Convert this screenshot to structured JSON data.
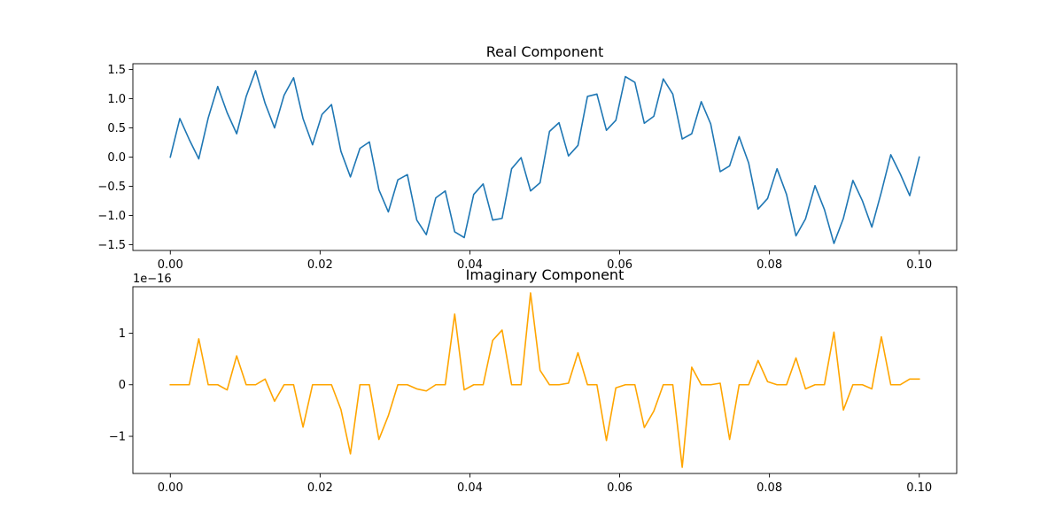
{
  "chart_data": [
    {
      "type": "line",
      "title": "Real Component",
      "xlabel": "",
      "ylabel": "",
      "xlim": [
        -0.005,
        0.105
      ],
      "ylim": [
        -1.6,
        1.6
      ],
      "xticks": [
        0.0,
        0.02,
        0.04,
        0.06,
        0.08,
        0.1
      ],
      "xtick_labels": [
        "0.00",
        "0.02",
        "0.04",
        "0.06",
        "0.08",
        "0.10"
      ],
      "yticks": [
        -1.5,
        -1.0,
        -0.5,
        0.0,
        0.5,
        1.0,
        1.5
      ],
      "ytick_labels": [
        "−1.5",
        "−1.0",
        "−0.5",
        "0.0",
        "0.5",
        "1.0",
        "1.5"
      ],
      "grid": false,
      "series": [
        {
          "color": "#1f77b4",
          "x": [
            0.0,
            0.00127,
            0.00253,
            0.0038,
            0.00506,
            0.00633,
            0.00759,
            0.00886,
            0.01013,
            0.01139,
            0.01266,
            0.01392,
            0.01519,
            0.01646,
            0.01772,
            0.01899,
            0.02025,
            0.02152,
            0.02278,
            0.02405,
            0.02532,
            0.02658,
            0.02785,
            0.02911,
            0.03038,
            0.03165,
            0.03291,
            0.03418,
            0.03544,
            0.03671,
            0.03797,
            0.03924,
            0.04051,
            0.04177,
            0.04304,
            0.0443,
            0.04557,
            0.04684,
            0.0481,
            0.04937,
            0.05063,
            0.0519,
            0.05316,
            0.05443,
            0.0557,
            0.05696,
            0.05823,
            0.05949,
            0.06076,
            0.06203,
            0.06329,
            0.06456,
            0.06582,
            0.06709,
            0.06835,
            0.06962,
            0.07089,
            0.07215,
            0.07342,
            0.07468,
            0.07595,
            0.07722,
            0.07848,
            0.07975,
            0.08101,
            0.08228,
            0.08354,
            0.08481,
            0.08608,
            0.08734,
            0.08861,
            0.08987,
            0.09114,
            0.09241,
            0.09367,
            0.09494,
            0.0962,
            0.09747,
            0.09873,
            0.1
          ],
          "y": [
            0.0,
            0.66,
            0.3,
            -0.03,
            0.67,
            1.21,
            0.76,
            0.4,
            1.04,
            1.48,
            0.92,
            0.5,
            1.06,
            1.36,
            0.66,
            0.21,
            0.73,
            0.9,
            0.1,
            -0.34,
            0.15,
            0.26,
            -0.56,
            -0.94,
            -0.39,
            -0.3,
            -1.08,
            -1.33,
            -0.7,
            -0.58,
            -1.28,
            -1.38,
            -0.64,
            -0.46,
            -1.08,
            -1.05,
            -0.2,
            -0.01,
            -0.58,
            -0.44,
            0.44,
            0.59,
            0.02,
            0.2,
            1.04,
            1.08,
            0.46,
            0.63,
            1.38,
            1.28,
            0.58,
            0.7,
            1.34,
            1.08,
            0.31,
            0.4,
            0.95,
            0.57,
            -0.25,
            -0.15,
            0.35,
            -0.1,
            -0.89,
            -0.71,
            -0.2,
            -0.64,
            -1.35,
            -1.06,
            -0.49,
            -0.9,
            -1.48,
            -1.05,
            -0.4,
            -0.75,
            -1.2,
            -0.6,
            0.04,
            -0.29,
            -0.66,
            0.0
          ]
        }
      ]
    },
    {
      "type": "line",
      "title": "Imaginary Component",
      "xlabel": "",
      "ylabel": "",
      "y_offset_label": "1e−16",
      "xlim": [
        -0.005,
        0.105
      ],
      "ylim": [
        -1.72,
        1.9
      ],
      "xticks": [
        0.0,
        0.02,
        0.04,
        0.06,
        0.08,
        0.1
      ],
      "xtick_labels": [
        "0.00",
        "0.02",
        "0.04",
        "0.06",
        "0.08",
        "0.10"
      ],
      "yticks": [
        -1,
        0,
        1
      ],
      "ytick_labels": [
        "−1",
        "0",
        "1"
      ],
      "grid": false,
      "series": [
        {
          "color": "#ffa500",
          "x": [
            0.0,
            0.00127,
            0.00253,
            0.0038,
            0.00506,
            0.00633,
            0.00759,
            0.00886,
            0.01013,
            0.01139,
            0.01266,
            0.01392,
            0.01519,
            0.01646,
            0.01772,
            0.01899,
            0.02025,
            0.02152,
            0.02278,
            0.02405,
            0.02532,
            0.02658,
            0.02785,
            0.02911,
            0.03038,
            0.03165,
            0.03291,
            0.03418,
            0.03544,
            0.03671,
            0.03797,
            0.03924,
            0.04051,
            0.04177,
            0.04304,
            0.0443,
            0.04557,
            0.04684,
            0.0481,
            0.04937,
            0.05063,
            0.0519,
            0.05316,
            0.05443,
            0.0557,
            0.05696,
            0.05823,
            0.05949,
            0.06076,
            0.06203,
            0.06329,
            0.06456,
            0.06582,
            0.06709,
            0.06835,
            0.06962,
            0.07089,
            0.07215,
            0.07342,
            0.07468,
            0.07595,
            0.07722,
            0.07848,
            0.07975,
            0.08101,
            0.08228,
            0.08354,
            0.08481,
            0.08608,
            0.08734,
            0.08861,
            0.08987,
            0.09114,
            0.09241,
            0.09367,
            0.09494,
            0.0962,
            0.09747,
            0.09873,
            0.1
          ],
          "y": [
            0.0,
            0.0,
            0.0,
            0.89,
            0.0,
            0.0,
            -0.1,
            0.56,
            0.0,
            0.0,
            0.11,
            -0.32,
            0.0,
            0.0,
            -0.82,
            0.0,
            0.0,
            0.0,
            -0.48,
            -1.34,
            0.0,
            0.0,
            -1.06,
            -0.6,
            0.0,
            0.0,
            -0.08,
            -0.12,
            0.0,
            0.0,
            1.37,
            -0.1,
            0.0,
            0.0,
            0.86,
            1.06,
            0.0,
            0.0,
            1.78,
            0.28,
            0.0,
            0.0,
            0.03,
            0.62,
            0.0,
            0.0,
            -1.08,
            -0.06,
            0.0,
            0.0,
            -0.83,
            -0.51,
            0.0,
            0.0,
            -1.6,
            0.34,
            0.0,
            0.0,
            0.03,
            -1.06,
            0.0,
            0.0,
            0.47,
            0.06,
            0.0,
            0.0,
            0.52,
            -0.08,
            0.0,
            0.0,
            1.02,
            -0.49,
            0.0,
            0.0,
            -0.08,
            0.93,
            0.0,
            0.0,
            0.11,
            0.11
          ]
        }
      ]
    }
  ]
}
